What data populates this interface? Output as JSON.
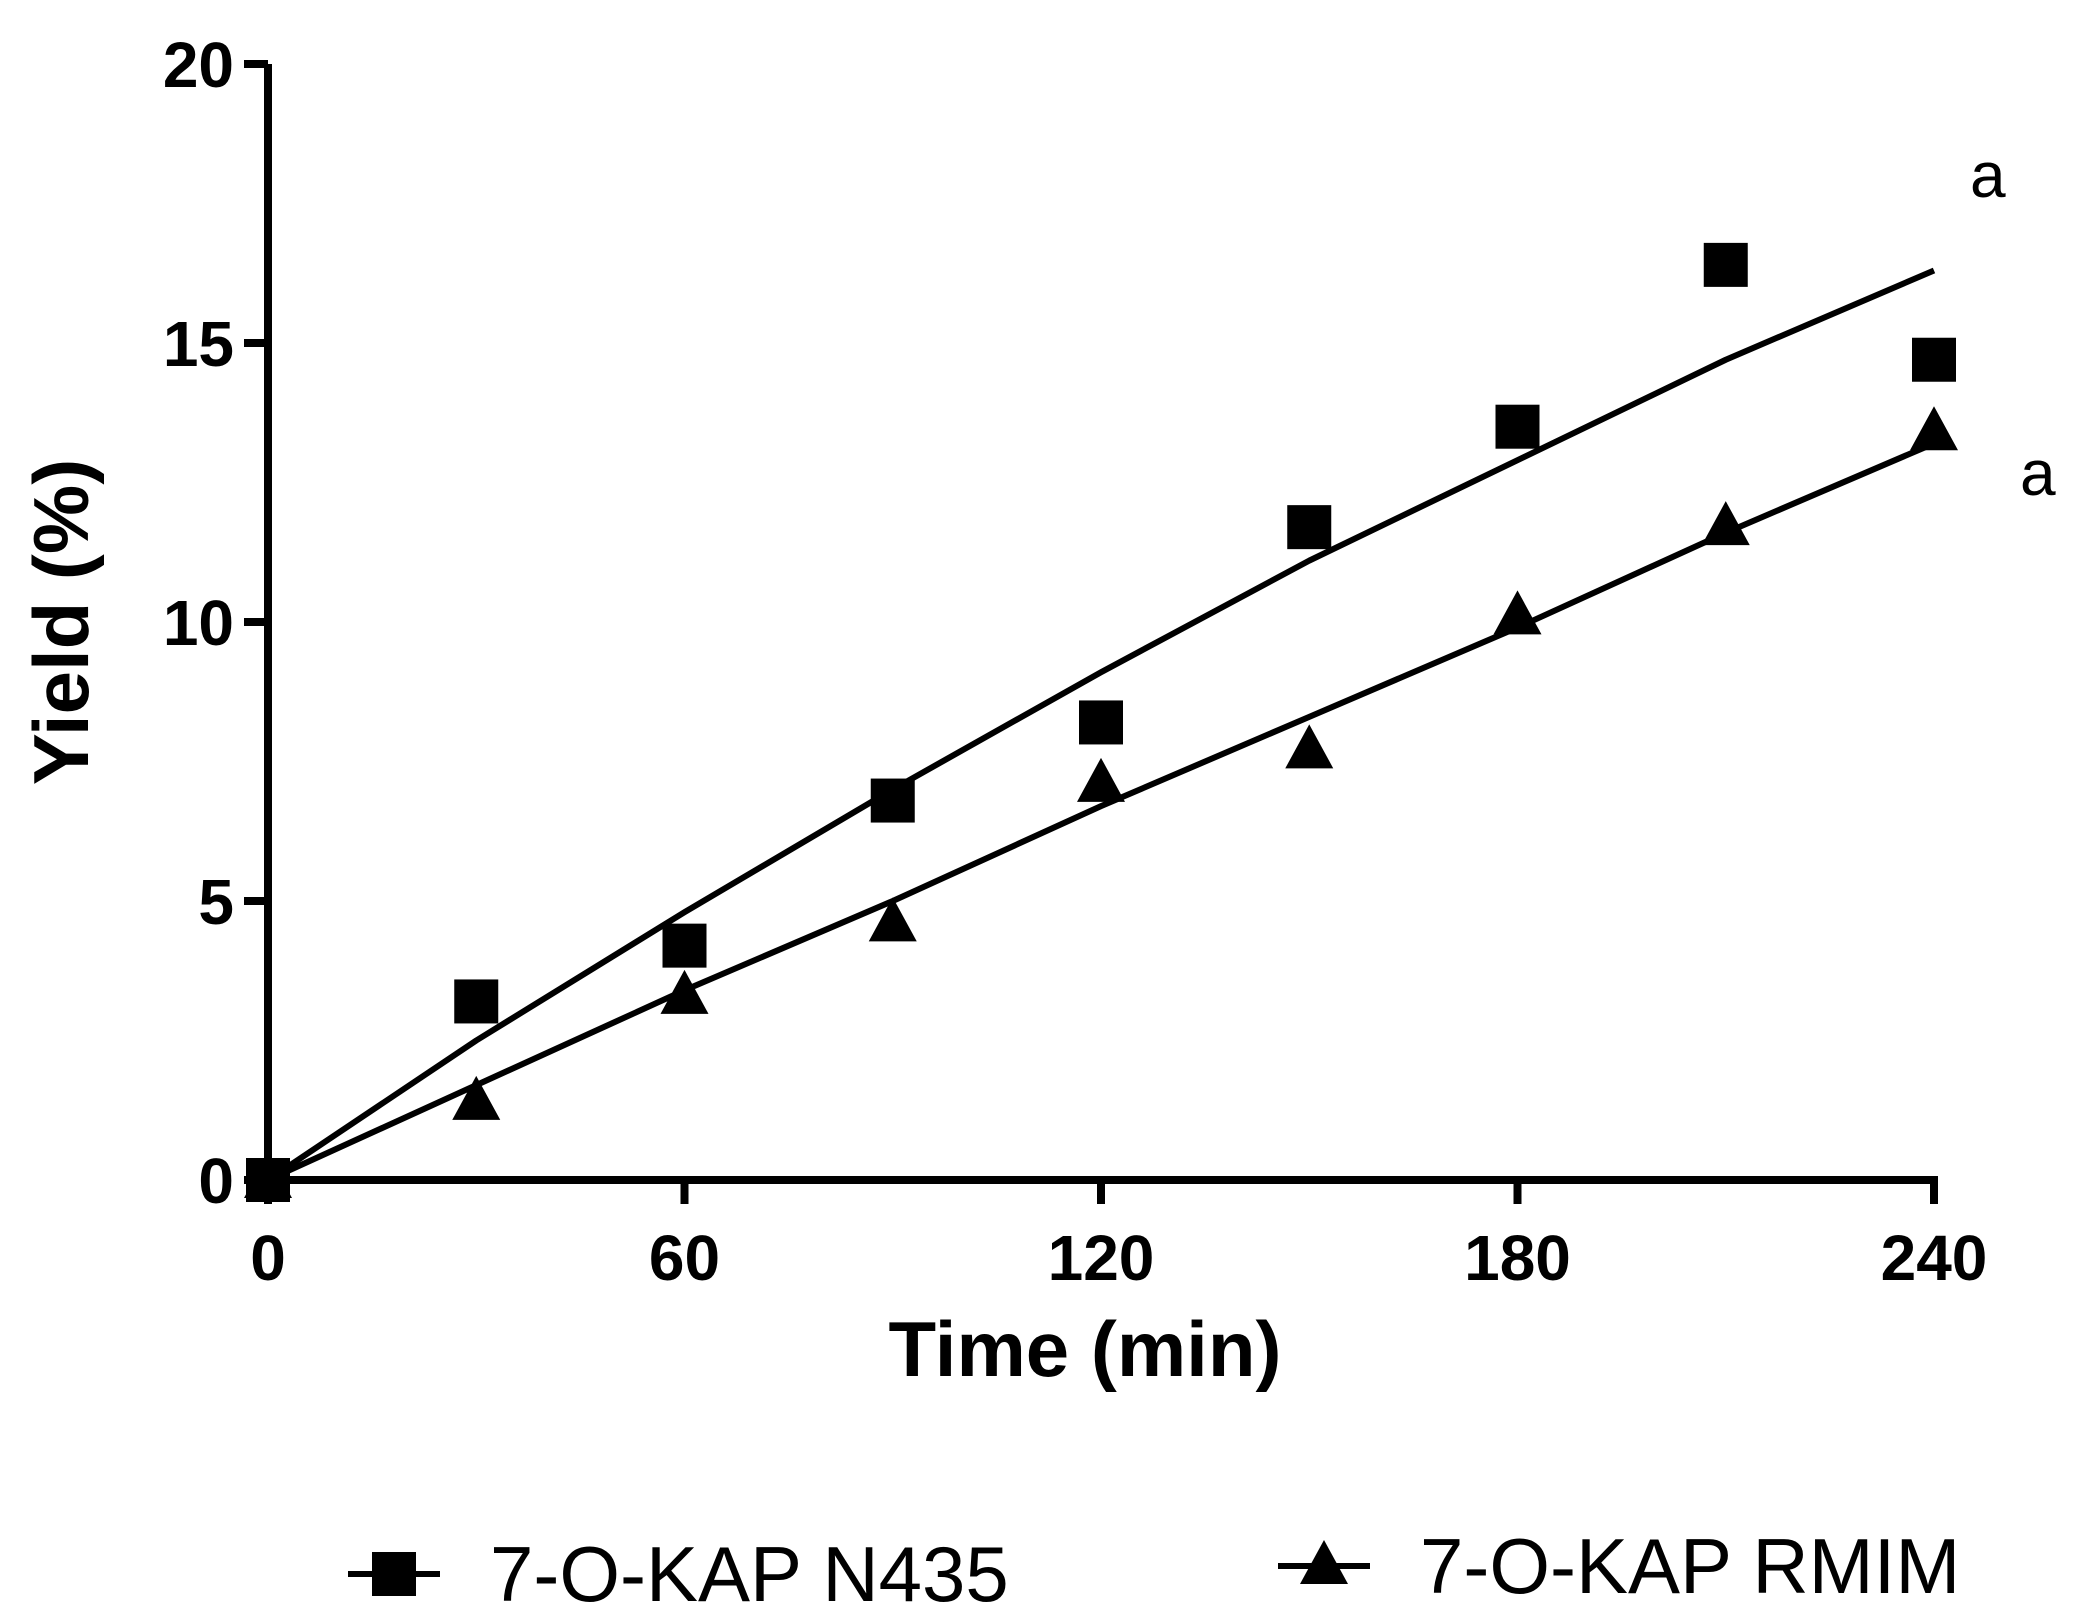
{
  "chart_data": {
    "type": "scatter",
    "title": "",
    "xlabel": "Time (min)",
    "ylabel": "Yield (%)",
    "xlim": [
      0,
      240
    ],
    "ylim": [
      0,
      20
    ],
    "xticks": [
      0,
      60,
      120,
      180,
      240
    ],
    "xtick_labels": [
      "0",
      "60",
      "120",
      "180",
      "240"
    ],
    "yticks": [
      0,
      5,
      10,
      15,
      20
    ],
    "ytick_labels": [
      "0",
      "5",
      "10",
      "15",
      "20"
    ],
    "grid": false,
    "legend_position": "bottom",
    "series": [
      {
        "name": "7-O-KAP N435",
        "marker": "square",
        "x": [
          0,
          30,
          60,
          90,
          120,
          150,
          180,
          210,
          240
        ],
        "y": [
          0,
          3.2,
          4.2,
          6.8,
          8.2,
          11.7,
          13.5,
          16.4,
          14.7
        ],
        "fit_x": [
          0,
          30,
          60,
          90,
          120,
          150,
          180,
          210,
          240
        ],
        "fit_y": [
          0,
          2.5,
          4.8,
          7.0,
          9.1,
          11.1,
          12.9,
          14.7,
          16.3
        ],
        "annotation": "a"
      },
      {
        "name": "7-O-KAP RMIM",
        "marker": "triangle",
        "x": [
          0,
          30,
          60,
          90,
          120,
          150,
          180,
          210,
          240
        ],
        "y": [
          0,
          1.4,
          3.3,
          4.6,
          7.1,
          7.7,
          10.1,
          11.7,
          13.4
        ],
        "fit_x": [
          0,
          30,
          60,
          90,
          120,
          150,
          180,
          210,
          240
        ],
        "fit_y": [
          0,
          1.7,
          3.4,
          5.0,
          6.7,
          8.3,
          9.9,
          11.6,
          13.2
        ],
        "annotation": "a"
      }
    ]
  }
}
